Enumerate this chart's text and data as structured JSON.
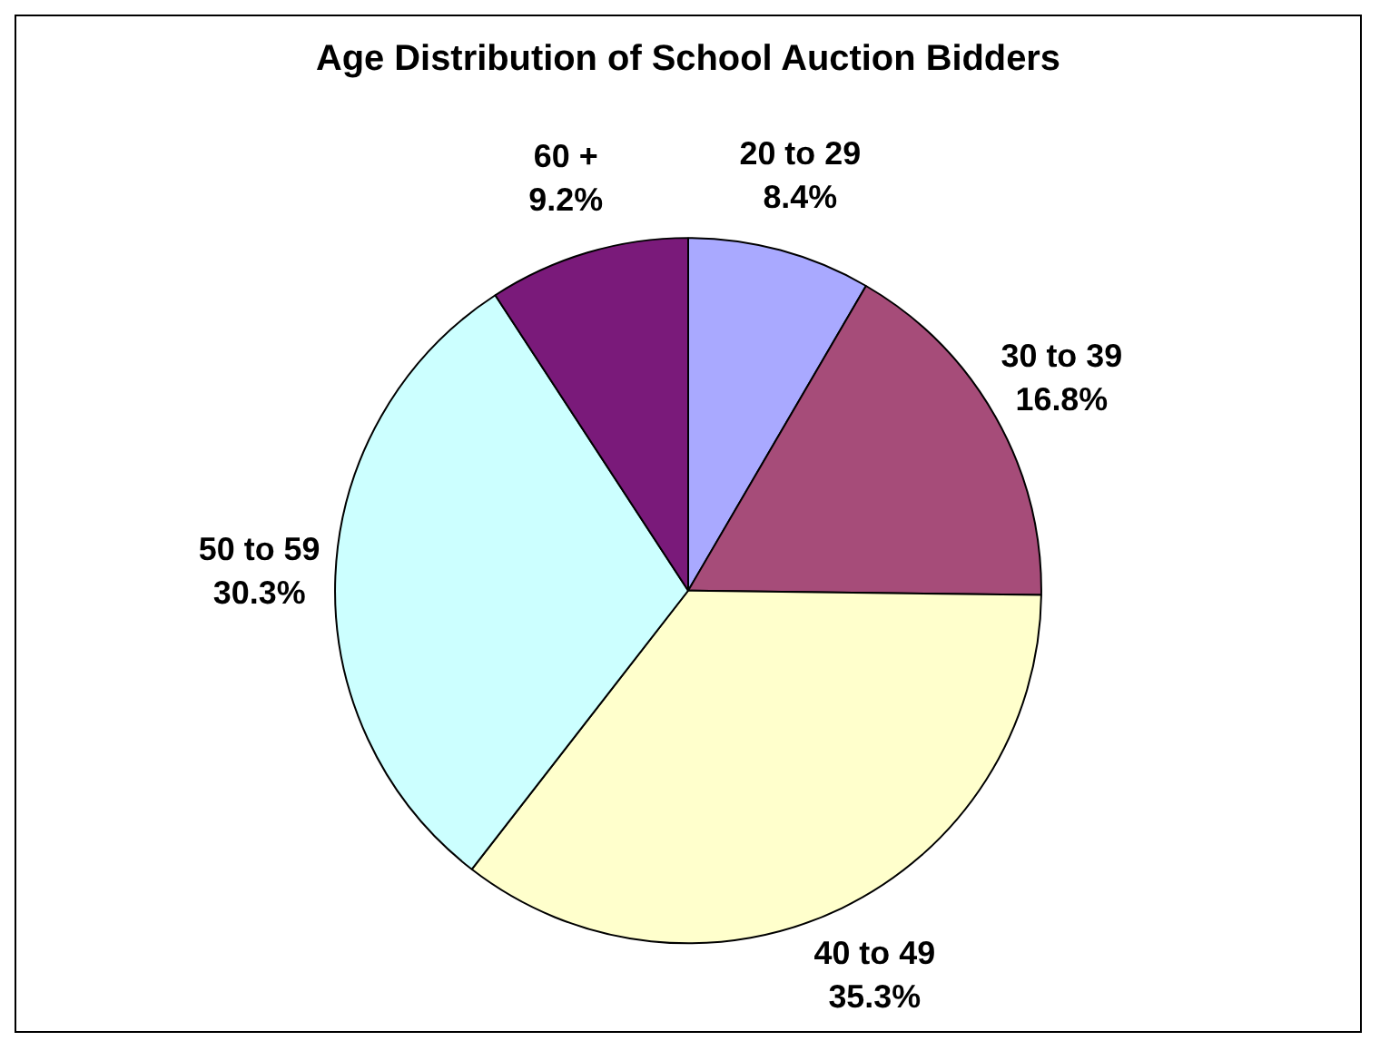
{
  "chart_data": {
    "type": "pie",
    "title": "Age Distribution of School Auction Bidders",
    "categories": [
      "20 to 29",
      "30 to 39",
      "40 to 49",
      "50 to 59",
      "60 +"
    ],
    "values": [
      8.4,
      16.8,
      35.3,
      30.3,
      9.2
    ],
    "value_labels": [
      "8.4%",
      "16.8%",
      "35.3%",
      "30.3%",
      "9.2%"
    ],
    "colors": [
      "#a9a9ff",
      "#a64c79",
      "#ffffcc",
      "#ccffff",
      "#7a1a7a"
    ],
    "legend": false
  }
}
